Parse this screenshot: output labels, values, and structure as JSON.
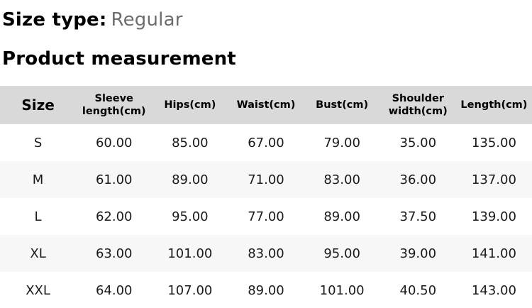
{
  "header": {
    "size_type_label": "Size type:",
    "size_type_value": "Regular",
    "section_title": "Product measurement"
  },
  "table": {
    "headers": [
      "Size",
      "Sleeve length(cm)",
      "Hips(cm)",
      "Waist(cm)",
      "Bust(cm)",
      "Shoulder width(cm)",
      "Length(cm)"
    ],
    "rows": [
      [
        "S",
        "60.00",
        "85.00",
        "67.00",
        "79.00",
        "35.00",
        "135.00"
      ],
      [
        "M",
        "61.00",
        "89.00",
        "71.00",
        "83.00",
        "36.00",
        "137.00"
      ],
      [
        "L",
        "62.00",
        "95.00",
        "77.00",
        "89.00",
        "37.50",
        "139.00"
      ],
      [
        "XL",
        "63.00",
        "101.00",
        "83.00",
        "95.00",
        "39.00",
        "141.00"
      ],
      [
        "XXL",
        "64.00",
        "107.00",
        "89.00",
        "101.00",
        "40.50",
        "143.00"
      ]
    ]
  },
  "colors": {
    "table_header_bg": "#d9d9d9",
    "alt_row_bg": "#f7f7f7",
    "muted_text": "#6d6d6d",
    "text": "#000000"
  }
}
